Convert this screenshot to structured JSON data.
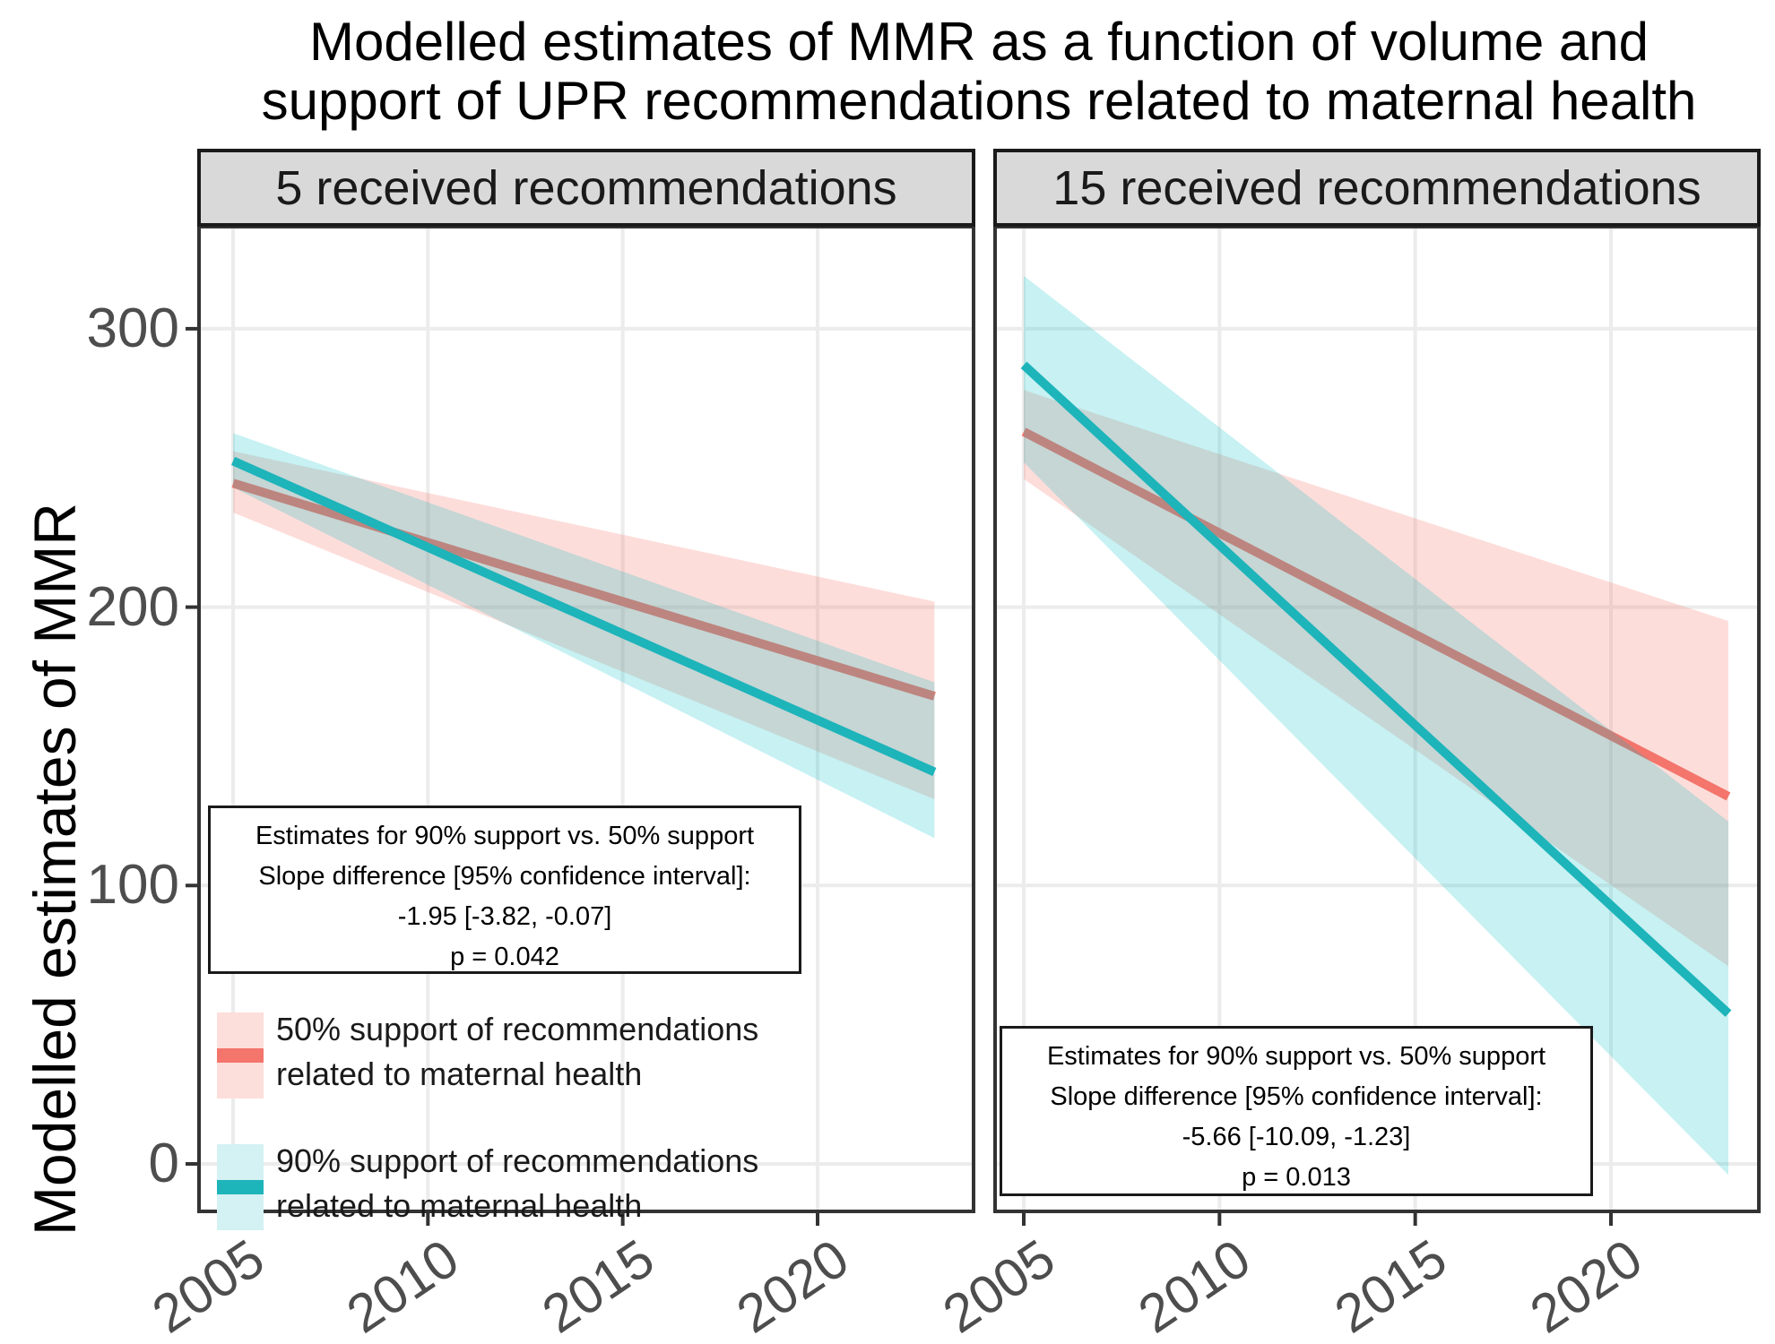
{
  "title": {
    "line1": "Modelled estimates of MMR as a function of volume and",
    "line2": "support of UPR recommendations related to maternal health"
  },
  "theme": {
    "strip_fill": "#D9D9D9",
    "panel_border": "#333333",
    "grid_color": "#ECECEC",
    "axis_text_color": "#4D4D4D",
    "tick_color": "#333333"
  },
  "chart_data": {
    "type": "line",
    "title": "Modelled estimates of MMR as a function of volume and support of UPR recommendations related to maternal health",
    "ylabel": "Modelled estimates of MMR",
    "xlabel": "",
    "y_ticks": [
      0,
      100,
      200,
      300
    ],
    "x_tick_years": [
      2005,
      2010,
      2015,
      2020
    ],
    "x_tick_labels": [
      "2005",
      "2010",
      "2015",
      "2020"
    ],
    "x_data_range": [
      2005,
      2023
    ],
    "ylim": [
      -17,
      336
    ],
    "grid": "major-only",
    "legend_position": "inside bottom-left of first facet",
    "facets": [
      {
        "label": "5 received recommendations",
        "series": [
          {
            "name": "50% support of recommendations related to maternal health",
            "color": "#F3756C",
            "ribbon_color": "rgba(248,118,109,0.25)",
            "x": [
              2005,
              2023
            ],
            "line": [
              244.5,
              168
            ],
            "ribbon_upper": [
              256,
              202
            ],
            "ribbon_lower": [
              234,
              131
            ]
          },
          {
            "name": "90% support of recommendations related to maternal health",
            "color": "#1DB4BA",
            "ribbon_color": "rgba(0,191,196,0.22)",
            "x": [
              2005,
              2023
            ],
            "line": [
              252.5,
              140.8
            ],
            "ribbon_upper": [
              262.5,
              173
            ],
            "ribbon_lower": [
              243,
              117
            ]
          }
        ],
        "annotation": {
          "lines": [
            "Estimates for 90% support vs. 50% support",
            "Slope difference [95% confidence interval]:",
            "-1.95 [-3.82, -0.07]",
            "p = 0.042"
          ]
        }
      },
      {
        "label": "15 received recommendations",
        "series": [
          {
            "name": "50% support of recommendations related to maternal health",
            "color": "#F3756C",
            "ribbon_color": "rgba(248,118,109,0.25)",
            "x": [
              2005,
              2023
            ],
            "line": [
              263,
              132
            ],
            "ribbon_upper": [
              278,
              195
            ],
            "ribbon_lower": [
              246,
              71
            ]
          },
          {
            "name": "90% support of recommendations related to maternal health",
            "color": "#1DB4BA",
            "ribbon_color": "rgba(0,191,196,0.22)",
            "x": [
              2005,
              2023
            ],
            "line": [
              287,
              54
            ],
            "ribbon_upper": [
              319,
              123
            ],
            "ribbon_lower": [
              252,
              -4
            ]
          }
        ],
        "annotation": {
          "lines": [
            "Estimates for 90% support vs. 50% support",
            "Slope difference [95% confidence interval]:",
            "-5.66 [-10.09, -1.23]",
            "p = 0.013"
          ]
        }
      }
    ],
    "legend": [
      {
        "label_line1": "50% support of recommendations",
        "label_line2": "related to maternal health",
        "line_color": "#F3756C",
        "fill": "#FCDEDB"
      },
      {
        "label_line1": "90% support of recommendations",
        "label_line2": "related to maternal health",
        "line_color": "#1DB4BA",
        "fill": "#D4F1F3"
      }
    ]
  }
}
